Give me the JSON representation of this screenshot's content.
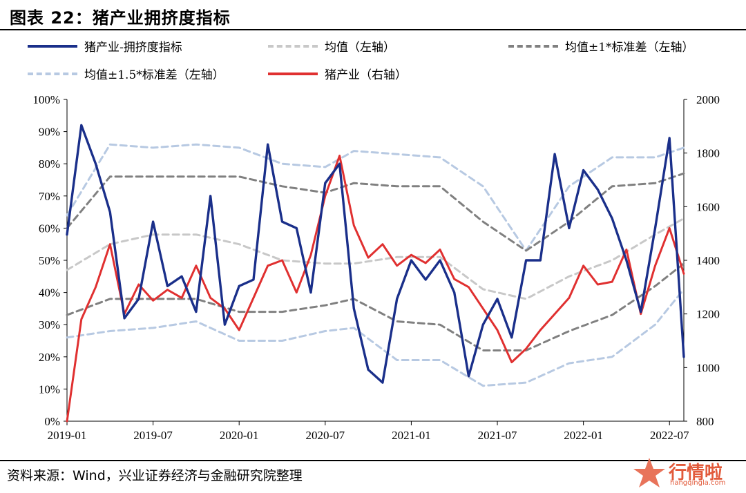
{
  "header": {
    "title": "图表 22：猪产业拥挤度指标"
  },
  "source": {
    "text": "资料来源：Wind，兴业证券经济与金融研究院整理"
  },
  "watermark": {
    "text": "行情啦",
    "sub": "hangqingla.com"
  },
  "colors": {
    "crowding": "#1a2f8a",
    "mean": "#c8c8c8",
    "band1": "#808080",
    "band15": "#b7c9e2",
    "pig": "#e03030",
    "watermark": "#e25a3a"
  },
  "chart_data": {
    "type": "line",
    "title": "图表 22：猪产业拥挤度指标",
    "legend_position": "top",
    "grid": false,
    "x_ticks": [
      "2019-01",
      "2019-07",
      "2020-01",
      "2020-07",
      "2021-01",
      "2021-07",
      "2022-01",
      "2022-07"
    ],
    "x_range": [
      "2019-01",
      "2022-08"
    ],
    "y_left": {
      "ticks": [
        "0%",
        "10%",
        "20%",
        "30%",
        "40%",
        "50%",
        "60%",
        "70%",
        "80%",
        "90%",
        "100%"
      ],
      "range": [
        0,
        100
      ]
    },
    "y_right": {
      "ticks": [
        "800",
        "1000",
        "1200",
        "1400",
        "1600",
        "1800",
        "2000"
      ],
      "range": [
        800,
        2000
      ]
    },
    "legend": [
      "猪产业-拥挤度指标",
      "均值（左轴）",
      "均值±1*标准差（左轴）",
      "均值±1.5*标准差（左轴）",
      "猪产业（右轴）"
    ],
    "series": [
      {
        "name": "猪产业-拥挤度指标",
        "axis": "left",
        "style": "solid",
        "x": [
          "2019-01",
          "2019-02",
          "2019-03",
          "2019-04",
          "2019-05",
          "2019-06",
          "2019-07",
          "2019-08",
          "2019-09",
          "2019-10",
          "2019-11",
          "2019-12",
          "2020-01",
          "2020-02",
          "2020-03",
          "2020-04",
          "2020-05",
          "2020-06",
          "2020-07",
          "2020-08",
          "2020-09",
          "2020-10",
          "2020-11",
          "2020-12",
          "2021-01",
          "2021-02",
          "2021-03",
          "2021-04",
          "2021-05",
          "2021-06",
          "2021-07",
          "2021-08",
          "2021-09",
          "2021-10",
          "2021-11",
          "2021-12",
          "2022-01",
          "2022-02",
          "2022-03",
          "2022-04",
          "2022-05",
          "2022-06",
          "2022-07",
          "2022-08"
        ],
        "y": [
          58,
          92,
          80,
          65,
          32,
          38,
          62,
          42,
          45,
          34,
          70,
          30,
          42,
          44,
          86,
          62,
          60,
          40,
          74,
          80,
          35,
          16,
          12,
          38,
          50,
          44,
          50,
          40,
          14,
          30,
          38,
          26,
          50,
          50,
          83,
          60,
          78,
          72,
          63,
          50,
          34,
          60,
          88,
          20
        ]
      },
      {
        "name": "均值（左轴）",
        "axis": "left",
        "style": "dashed",
        "x": [
          "2019-01",
          "2019-04",
          "2019-07",
          "2019-10",
          "2020-01",
          "2020-04",
          "2020-07",
          "2020-09",
          "2020-12",
          "2021-03",
          "2021-06",
          "2021-09",
          "2021-12",
          "2022-03",
          "2022-06",
          "2022-08"
        ],
        "y": [
          47,
          55,
          58,
          58,
          55,
          50,
          49,
          49,
          51,
          51,
          41,
          38,
          45,
          50,
          58,
          63
        ]
      },
      {
        "name": "均值+1*标准差（左轴）",
        "axis": "left",
        "style": "dashed",
        "x": [
          "2019-01",
          "2019-04",
          "2019-07",
          "2019-10",
          "2020-01",
          "2020-04",
          "2020-07",
          "2020-09",
          "2020-12",
          "2021-03",
          "2021-06",
          "2021-09",
          "2021-12",
          "2022-03",
          "2022-06",
          "2022-08"
        ],
        "y": [
          60,
          76,
          76,
          76,
          76,
          73,
          71,
          74,
          73,
          73,
          62,
          53,
          62,
          73,
          74,
          77
        ]
      },
      {
        "name": "均值-1*标准差（左轴）",
        "axis": "left",
        "style": "dashed",
        "x": [
          "2019-01",
          "2019-04",
          "2019-07",
          "2019-10",
          "2020-01",
          "2020-04",
          "2020-07",
          "2020-09",
          "2020-12",
          "2021-03",
          "2021-06",
          "2021-09",
          "2021-12",
          "2022-03",
          "2022-06",
          "2022-08"
        ],
        "y": [
          33,
          38,
          38,
          38,
          34,
          34,
          36,
          38,
          31,
          30,
          22,
          22,
          28,
          33,
          42,
          49
        ]
      },
      {
        "name": "均值+1.5*标准差（左轴）",
        "axis": "left",
        "style": "dashed",
        "x": [
          "2019-01",
          "2019-04",
          "2019-07",
          "2019-10",
          "2020-01",
          "2020-04",
          "2020-07",
          "2020-09",
          "2020-12",
          "2021-03",
          "2021-06",
          "2021-09",
          "2021-12",
          "2022-03",
          "2022-06",
          "2022-08"
        ],
        "y": [
          64,
          86,
          85,
          86,
          85,
          80,
          79,
          84,
          83,
          82,
          73,
          53,
          73,
          82,
          82,
          85
        ]
      },
      {
        "name": "均值-1.5*标准差（左轴）",
        "axis": "left",
        "style": "dashed",
        "x": [
          "2019-01",
          "2019-04",
          "2019-07",
          "2019-10",
          "2020-01",
          "2020-04",
          "2020-07",
          "2020-09",
          "2020-12",
          "2021-03",
          "2021-06",
          "2021-09",
          "2021-12",
          "2022-03",
          "2022-06",
          "2022-08"
        ],
        "y": [
          26,
          28,
          29,
          31,
          25,
          25,
          28,
          29,
          19,
          19,
          11,
          12,
          18,
          20,
          30,
          41
        ]
      },
      {
        "name": "猪产业（右轴）",
        "axis": "right",
        "style": "solid",
        "x": [
          "2019-01",
          "2019-02",
          "2019-03",
          "2019-04",
          "2019-05",
          "2019-06",
          "2019-07",
          "2019-08",
          "2019-09",
          "2019-10",
          "2019-11",
          "2019-12",
          "2020-01",
          "2020-02",
          "2020-03",
          "2020-04",
          "2020-05",
          "2020-06",
          "2020-07",
          "2020-08",
          "2020-09",
          "2020-10",
          "2020-11",
          "2020-12",
          "2021-01",
          "2021-02",
          "2021-03",
          "2021-04",
          "2021-05",
          "2021-06",
          "2021-07",
          "2021-08",
          "2021-09",
          "2021-10",
          "2021-11",
          "2021-12",
          "2022-01",
          "2022-02",
          "2022-03",
          "2022-04",
          "2022-05",
          "2022-06",
          "2022-07",
          "2022-08"
        ],
        "y": [
          800,
          1180,
          1300,
          1460,
          1200,
          1310,
          1250,
          1290,
          1260,
          1380,
          1260,
          1220,
          1140,
          1260,
          1380,
          1400,
          1280,
          1420,
          1640,
          1790,
          1530,
          1410,
          1460,
          1380,
          1420,
          1390,
          1440,
          1330,
          1300,
          1220,
          1140,
          1020,
          1070,
          1140,
          1200,
          1260,
          1380,
          1310,
          1320,
          1440,
          1200,
          1380,
          1520,
          1350
        ]
      }
    ]
  }
}
